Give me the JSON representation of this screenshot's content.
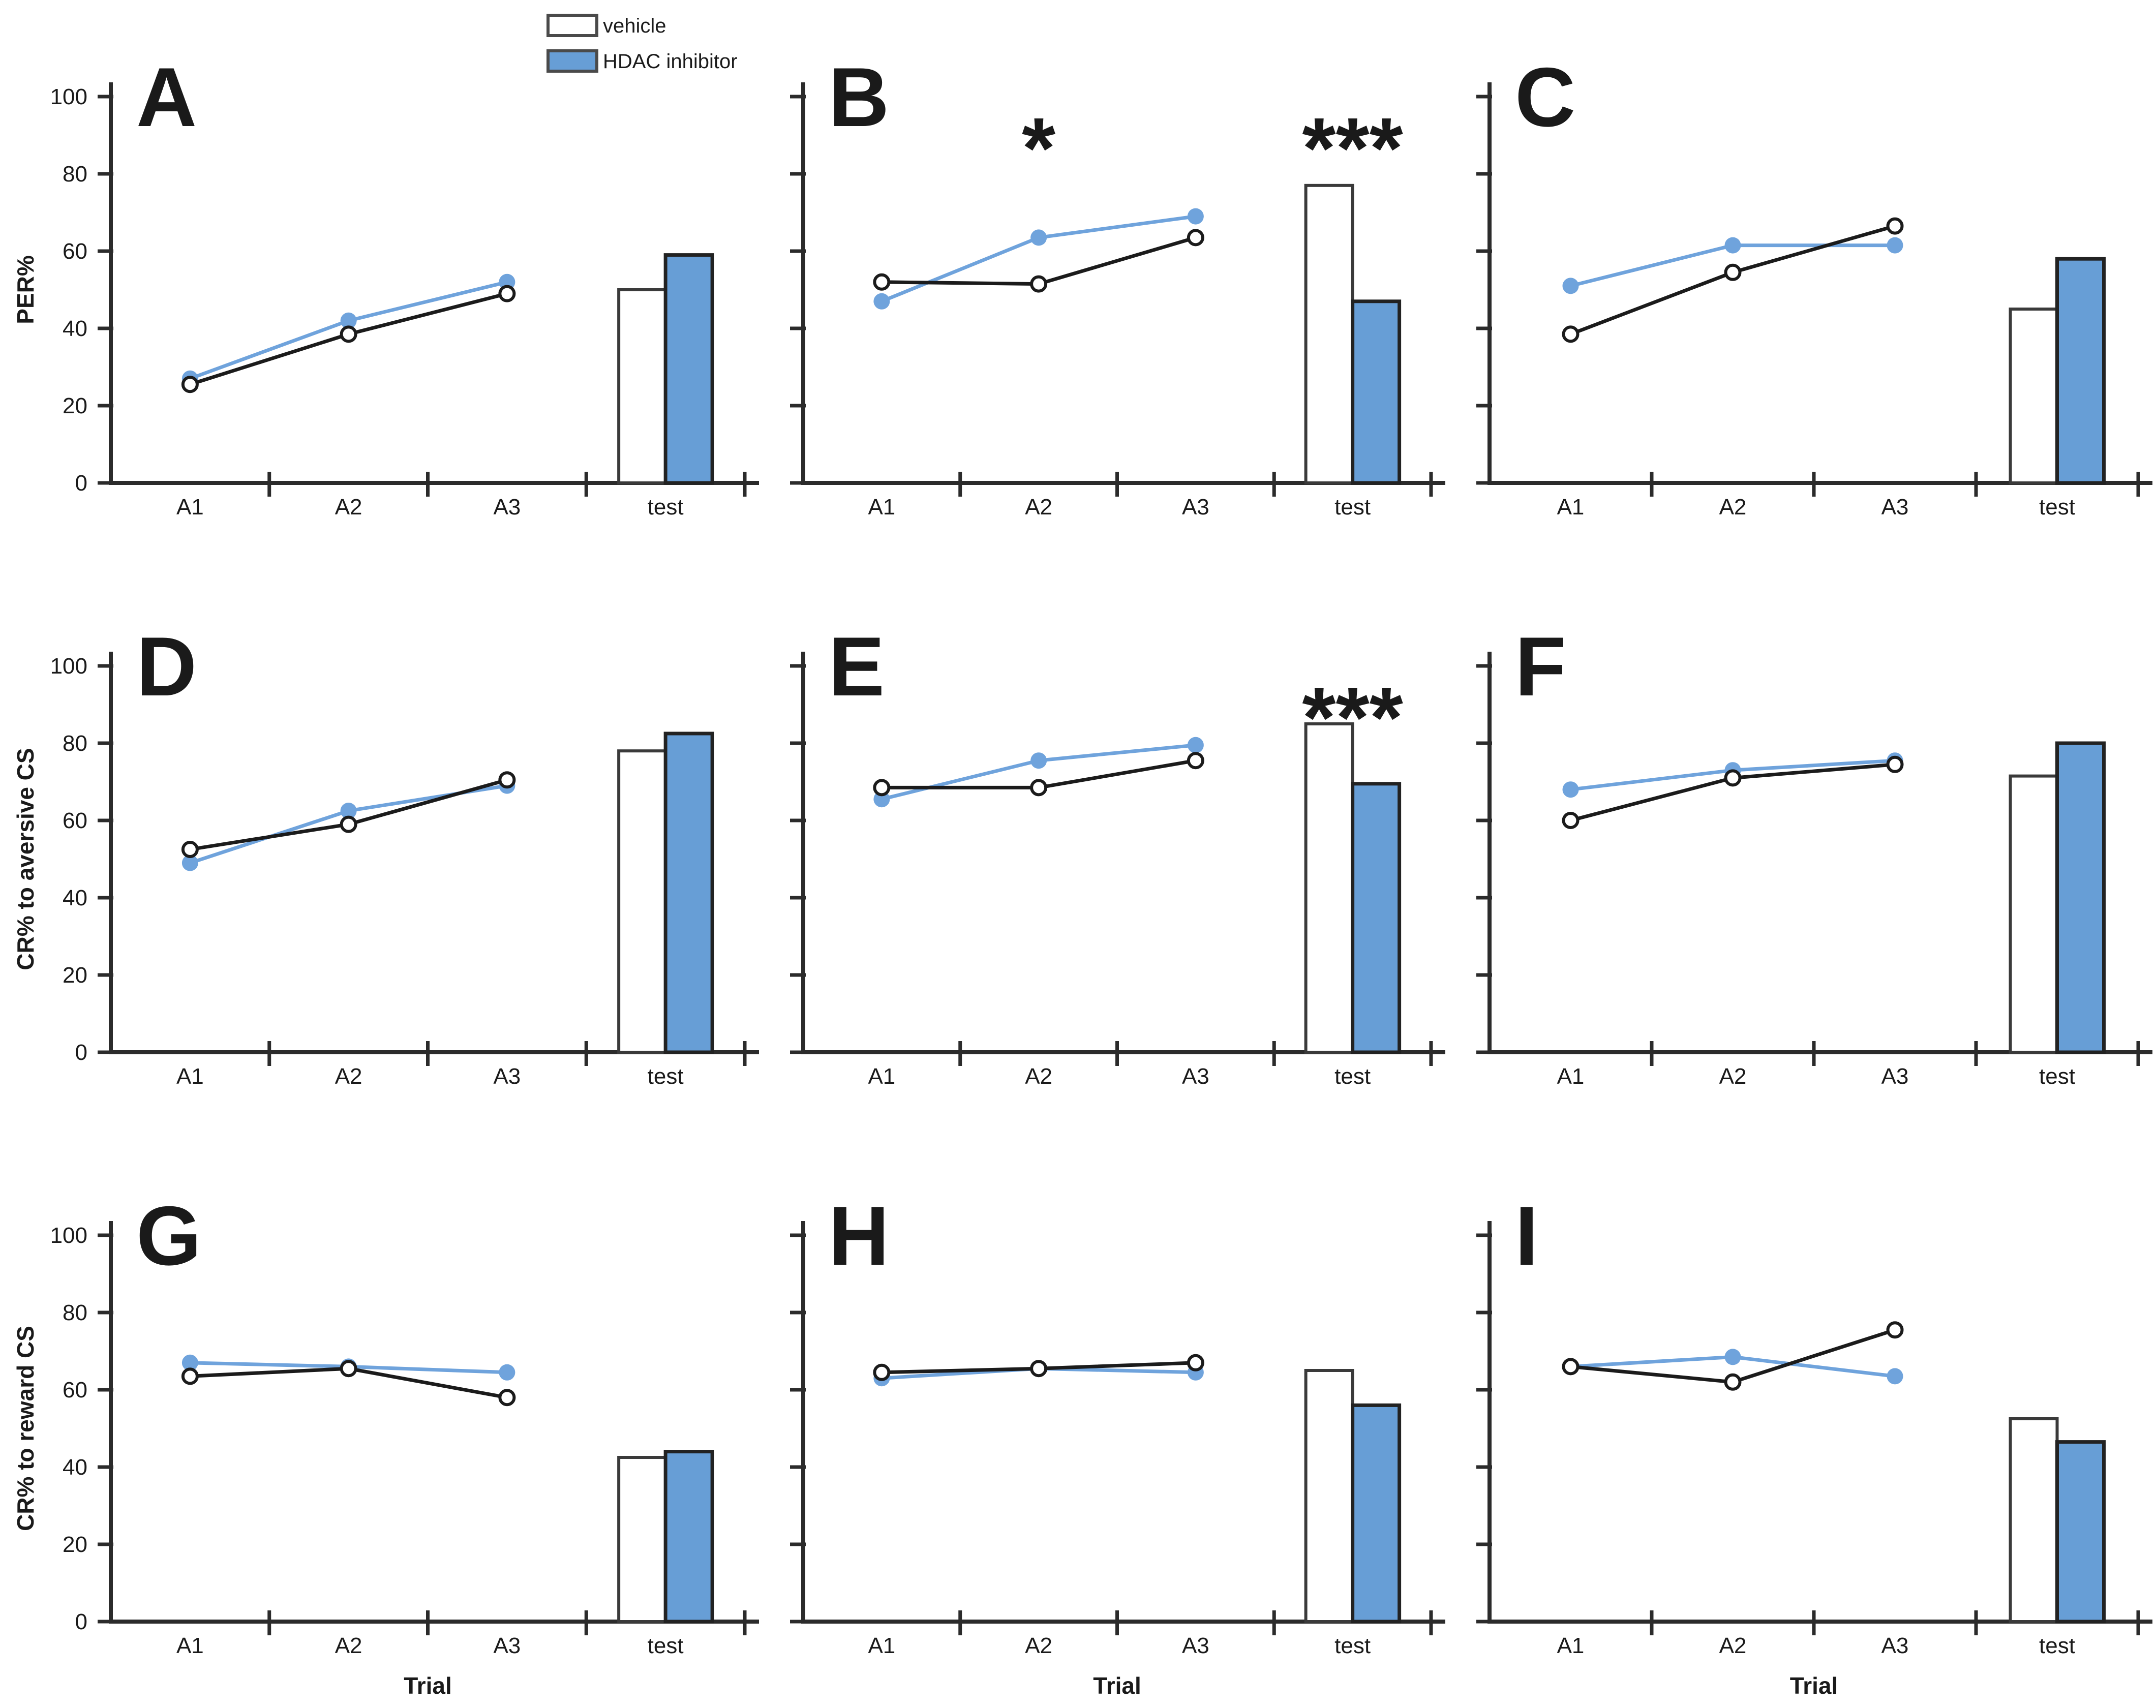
{
  "page": {
    "background": "#ffffff"
  },
  "colors": {
    "vehicle_fill": "#ffffff",
    "vehicle_stroke": "#1b1b1b",
    "hdac_line": "#6fa3dc",
    "hdac_bar_fill": "#679ed6",
    "bar_outline": "#222222",
    "axis": "#2b2b2b",
    "text": "#1a1a1a",
    "annotation": "#000000"
  },
  "legend": {
    "items": [
      {
        "label": "vehicle",
        "swatch": "white"
      },
      {
        "label": "HDAC inhibitor",
        "swatch": "blue"
      }
    ]
  },
  "chart_data": {
    "type": "line+bar",
    "categories": [
      "A1",
      "A2",
      "A3"
    ],
    "bar_category": "test",
    "x_tick_labels": [
      "A1",
      "A2",
      "A3",
      "test"
    ],
    "x_axis_title": "Trial",
    "y_axis": {
      "min": 0,
      "max": 100,
      "ticks": [
        0,
        20,
        40,
        60,
        80,
        100
      ],
      "tick_labels": [
        "0",
        "20",
        "40",
        "60",
        "80",
        "100"
      ]
    },
    "series_names": [
      "vehicle",
      "HDAC inhibitor"
    ],
    "legend_position": "top of panel A",
    "grid": "off",
    "panels": [
      {
        "label": "A",
        "y_axis_title": "PER%",
        "show_y_tick_labels": true,
        "show_x_title": false,
        "show_legend": true,
        "series": [
          {
            "name": "vehicle",
            "line": [
              25.5,
              38.5,
              49
            ],
            "bar": 50
          },
          {
            "name": "HDAC inhibitor",
            "line": [
              27,
              42,
              52
            ],
            "bar": 59
          }
        ],
        "annotations": []
      },
      {
        "label": "B",
        "y_axis_title": "",
        "show_y_tick_labels": false,
        "show_x_title": false,
        "show_legend": false,
        "series": [
          {
            "name": "vehicle",
            "line": [
              52,
              51.5,
              63.5
            ],
            "bar": 77
          },
          {
            "name": "HDAC inhibitor",
            "line": [
              47,
              63.5,
              69
            ],
            "bar": 47
          }
        ],
        "annotations": [
          {
            "category": "A2",
            "text": "*"
          },
          {
            "category": "test",
            "text": "***"
          }
        ]
      },
      {
        "label": "C",
        "y_axis_title": "",
        "show_y_tick_labels": false,
        "show_x_title": false,
        "show_legend": false,
        "series": [
          {
            "name": "vehicle",
            "line": [
              38.5,
              54.5,
              66.5
            ],
            "bar": 45
          },
          {
            "name": "HDAC inhibitor",
            "line": [
              51,
              61.5,
              61.5
            ],
            "bar": 58
          }
        ],
        "annotations": []
      },
      {
        "label": "D",
        "y_axis_title": "CR% to aversive CS",
        "show_y_tick_labels": true,
        "show_x_title": false,
        "show_legend": false,
        "series": [
          {
            "name": "vehicle",
            "line": [
              52.5,
              59,
              70.5
            ],
            "bar": 78
          },
          {
            "name": "HDAC inhibitor",
            "line": [
              49,
              62.5,
              69
            ],
            "bar": 82.5
          }
        ],
        "annotations": []
      },
      {
        "label": "E",
        "y_axis_title": "",
        "show_y_tick_labels": false,
        "show_x_title": false,
        "show_legend": false,
        "series": [
          {
            "name": "vehicle",
            "line": [
              68.5,
              68.5,
              75.5
            ],
            "bar": 85
          },
          {
            "name": "HDAC inhibitor",
            "line": [
              65.5,
              75.5,
              79.5
            ],
            "bar": 69.5
          }
        ],
        "annotations": [
          {
            "category": "test",
            "text": "***"
          }
        ]
      },
      {
        "label": "F",
        "y_axis_title": "",
        "show_y_tick_labels": false,
        "show_x_title": false,
        "show_legend": false,
        "series": [
          {
            "name": "vehicle",
            "line": [
              60,
              71,
              74.5
            ],
            "bar": 71.5
          },
          {
            "name": "HDAC inhibitor",
            "line": [
              68,
              73,
              75.5
            ],
            "bar": 80
          }
        ],
        "annotations": []
      },
      {
        "label": "G",
        "y_axis_title": "CR% to reward CS",
        "show_y_tick_labels": true,
        "show_x_title": true,
        "show_legend": false,
        "series": [
          {
            "name": "vehicle",
            "line": [
              63.5,
              65.5,
              58
            ],
            "bar": 42.5
          },
          {
            "name": "HDAC inhibitor",
            "line": [
              67,
              66,
              64.5
            ],
            "bar": 44
          }
        ],
        "annotations": []
      },
      {
        "label": "H",
        "y_axis_title": "",
        "show_y_tick_labels": false,
        "show_x_title": true,
        "show_legend": false,
        "series": [
          {
            "name": "vehicle",
            "line": [
              64.5,
              65.5,
              67
            ],
            "bar": 65
          },
          {
            "name": "HDAC inhibitor",
            "line": [
              63,
              65.5,
              64.5
            ],
            "bar": 56
          }
        ],
        "annotations": []
      },
      {
        "label": "I",
        "y_axis_title": "",
        "show_y_tick_labels": false,
        "show_x_title": true,
        "show_legend": false,
        "series": [
          {
            "name": "vehicle",
            "line": [
              66,
              62,
              75.5
            ],
            "bar": 52.5
          },
          {
            "name": "HDAC inhibitor",
            "line": [
              66,
              68.5,
              63.5
            ],
            "bar": 46.5
          }
        ],
        "annotations": []
      }
    ]
  }
}
